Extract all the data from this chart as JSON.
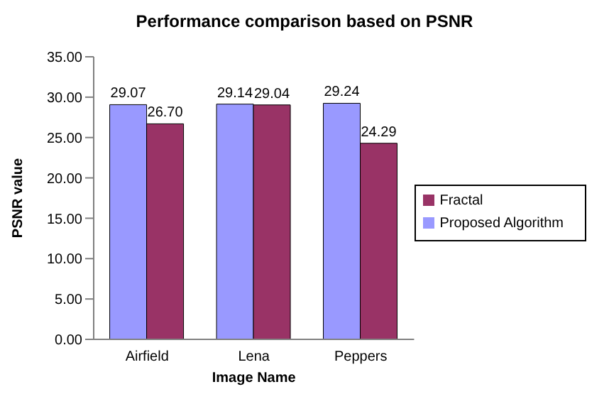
{
  "chart_data": {
    "type": "bar",
    "title": "Performance comparison based on PSNR",
    "xlabel": "Image Name",
    "ylabel": "PSNR value",
    "categories": [
      "Airfield",
      "Lena",
      "Peppers"
    ],
    "series": [
      {
        "name": "Proposed Algorithm",
        "color": "#9999ff",
        "values": [
          29.07,
          29.14,
          29.24
        ],
        "value_labels": [
          "29.07",
          "29.14",
          "29.24"
        ]
      },
      {
        "name": "Fractal",
        "color": "#993366",
        "values": [
          26.7,
          29.04,
          24.29
        ],
        "value_labels": [
          "26.70",
          "29.04",
          "24.29"
        ]
      }
    ],
    "ylim": [
      0,
      35
    ],
    "yticks": [
      {
        "value": 0,
        "label": "0.00"
      },
      {
        "value": 5,
        "label": "5.00"
      },
      {
        "value": 10,
        "label": "10.00"
      },
      {
        "value": 15,
        "label": "15.00"
      },
      {
        "value": 20,
        "label": "20.00"
      },
      {
        "value": 25,
        "label": "25.00"
      },
      {
        "value": 30,
        "label": "30.00"
      },
      {
        "value": 35,
        "label": "35.00"
      }
    ],
    "grid": false,
    "legend": "right"
  }
}
